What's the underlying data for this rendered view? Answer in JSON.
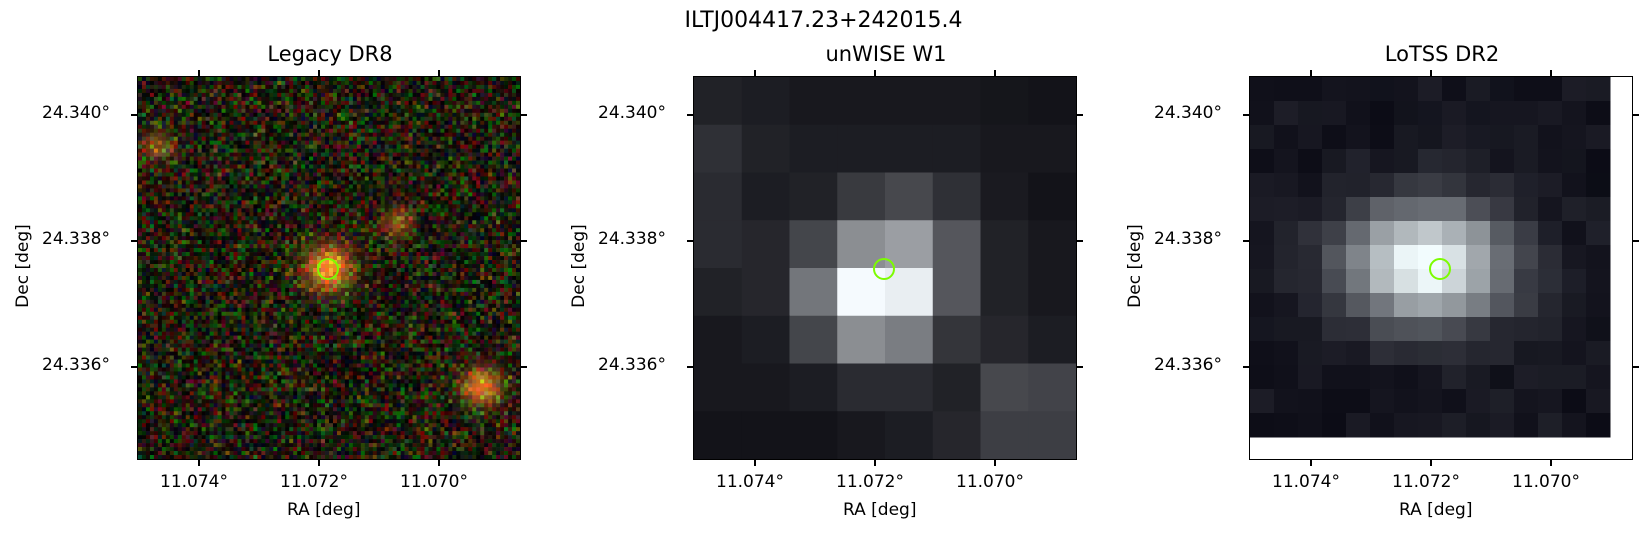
{
  "figure": {
    "title": "ILTJ004417.23+242015.4"
  },
  "panels": [
    {
      "title": "Legacy DR8",
      "image": "legacy-optical-image"
    },
    {
      "title": "unWISE W1",
      "image": "unwise-infrared-image"
    },
    {
      "title": "LoTSS DR2",
      "image": "lotss-radio-image"
    }
  ],
  "axes": {
    "xlabel": "RA [deg]",
    "ylabel": "Dec [deg]",
    "xticks": [
      "11.074°",
      "11.072°",
      "11.070°"
    ],
    "yticks": [
      "24.340°",
      "24.338°",
      "24.336°"
    ]
  },
  "marker": {
    "color": "#7CFC00",
    "shape": "circle"
  }
}
